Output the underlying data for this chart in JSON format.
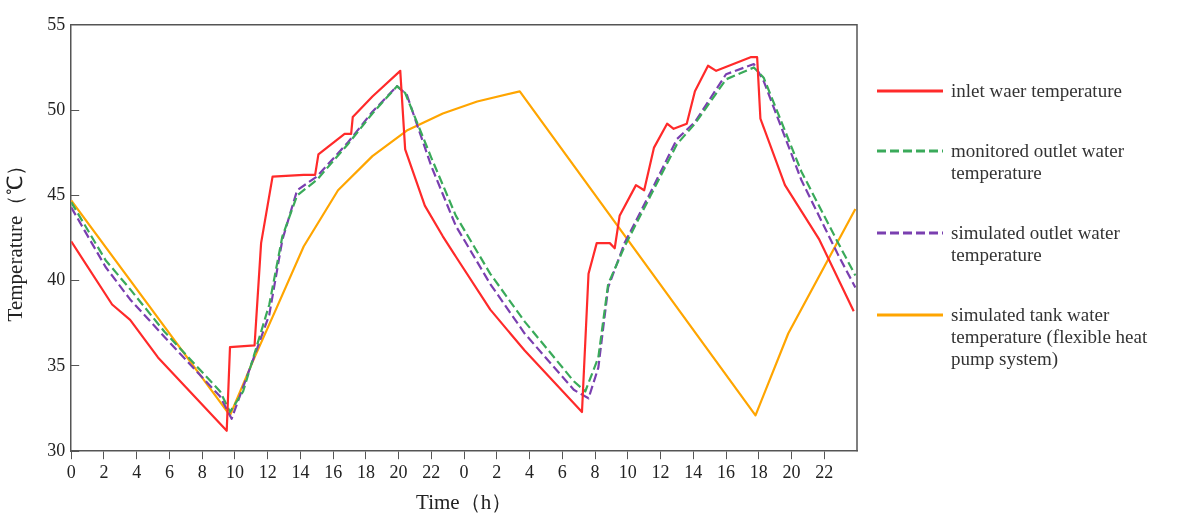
{
  "chart_data": {
    "type": "line",
    "xlabel": "Time（h）",
    "ylabel": "Temperature（℃）",
    "xlim": [
      "--01-01T00:00",
      "--01-03T00:00"
    ],
    "xticks": [
      {
        "value": "--01-01T00:00",
        "label": "0"
      },
      {
        "value": "--01-01T02:00",
        "label": "2"
      },
      {
        "value": "--01-01T04:00",
        "label": "4"
      },
      {
        "value": "--01-01T06:00",
        "label": "6"
      },
      {
        "value": "--01-01T08:00",
        "label": "8"
      },
      {
        "value": "--01-01T10:00",
        "label": "10"
      },
      {
        "value": "--01-01T12:00",
        "label": "12"
      },
      {
        "value": "--01-01T14:00",
        "label": "14"
      },
      {
        "value": "--01-01T16:00",
        "label": "16"
      },
      {
        "value": "--01-01T18:00",
        "label": "18"
      },
      {
        "value": "--01-01T20:00",
        "label": "20"
      },
      {
        "value": "--01-01T22:00",
        "label": "22"
      },
      {
        "value": "--01-02T00:00",
        "label": "0"
      },
      {
        "value": "--01-02T02:00",
        "label": "2"
      },
      {
        "value": "--01-02T04:00",
        "label": "4"
      },
      {
        "value": "--01-02T06:00",
        "label": "6"
      },
      {
        "value": "--01-02T08:00",
        "label": "8"
      },
      {
        "value": "--01-02T10:00",
        "label": "10"
      },
      {
        "value": "--01-02T12:00",
        "label": "12"
      },
      {
        "value": "--01-02T14:00",
        "label": "14"
      },
      {
        "value": "--01-02T16:00",
        "label": "16"
      },
      {
        "value": "--01-02T18:00",
        "label": "18"
      },
      {
        "value": "--01-02T20:00",
        "label": "20"
      },
      {
        "value": "--01-02T22:00",
        "label": "22"
      }
    ],
    "ylim": [
      30,
      55
    ],
    "yticks": [
      30,
      35,
      40,
      45,
      50,
      55
    ],
    "grid": false,
    "legend": "right",
    "marker": "none",
    "series": [
      {
        "name": "inlet waer temperature",
        "color": "#ff2a2a",
        "line_style": "solid",
        "x": [
          "--01-01T00:00",
          "--01-01T02:30",
          "--01-01T03:36",
          "--01-01T05:18",
          "--01-01T09:30",
          "--01-01T09:42",
          "--01-01T11:12",
          "--01-01T11:36",
          "--01-01T12:18",
          "--01-01T14:12",
          "--01-01T14:54",
          "--01-01T15:06",
          "--01-01T16:42",
          "--01-01T17:06",
          "--01-01T17:12",
          "--01-01T18:24",
          "--01-01T20:06",
          "--01-01T20:24",
          "--01-01T21:36",
          "--01-01T22:42",
          "--01-01T23:30",
          "--01-02T01:36",
          "--01-02T03:42",
          "--01-02T07:12",
          "--01-02T07:36",
          "--01-02T08:06",
          "--01-02T08:54",
          "--01-02T09:12",
          "--01-02T09:30",
          "--01-02T10:30",
          "--01-02T11:00",
          "--01-02T11:36",
          "--01-02T12:24",
          "--01-02T12:48",
          "--01-02T13:36",
          "--01-02T14:06",
          "--01-02T14:54",
          "--01-02T15:24",
          "--01-02T17:30",
          "--01-02T17:54",
          "--01-02T18:06",
          "--01-02T19:36",
          "--01-02T21:42",
          "--01-02T23:48"
        ],
        "values": [
          42.3,
          38.6,
          37.7,
          35.5,
          31.2,
          36.1,
          36.2,
          42.2,
          46.1,
          46.2,
          46.2,
          47.4,
          48.6,
          48.6,
          49.6,
          50.8,
          52.3,
          47.7,
          44.4,
          42.6,
          41.4,
          38.3,
          35.9,
          32.3,
          40.4,
          42.2,
          42.2,
          41.9,
          43.8,
          45.6,
          45.3,
          47.8,
          49.2,
          48.9,
          49.2,
          51.1,
          52.6,
          52.3,
          53.1,
          53.1,
          49.5,
          45.6,
          42.4,
          38.2
        ]
      },
      {
        "name": "monitored outlet water temperature",
        "color": "#3aaa5a",
        "line_style": "dashed",
        "x": [
          "--01-01T00:00",
          "--01-01T02:06",
          "--01-01T03:36",
          "--01-01T05:42",
          "--01-01T09:06",
          "--01-01T09:42",
          "--01-01T10:30",
          "--01-01T12:06",
          "--01-01T12:54",
          "--01-01T13:48",
          "--01-01T15:00",
          "--01-01T16:54",
          "--01-01T18:24",
          "--01-01T19:54",
          "--01-01T20:24",
          "--01-01T22:00",
          "--01-01T23:30",
          "--01-02T01:36",
          "--01-02T03:42",
          "--01-02T06:42",
          "--01-02T07:24",
          "--01-02T08:12",
          "--01-02T08:48",
          "--01-02T09:48",
          "--01-02T11:24",
          "--01-02T13:00",
          "--01-02T14:06",
          "--01-02T16:00",
          "--01-02T17:42",
          "--01-02T18:18",
          "--01-02T20:36",
          "--01-02T22:48",
          "--01-02T23:54"
        ],
        "values": [
          44.6,
          41.2,
          39.5,
          37.0,
          33.5,
          32.3,
          33.5,
          38.6,
          42.6,
          45.0,
          45.9,
          48.0,
          49.8,
          51.4,
          51.0,
          47.2,
          43.8,
          40.4,
          37.6,
          34.1,
          33.5,
          35.5,
          39.8,
          42.0,
          45.0,
          48.0,
          49.2,
          51.8,
          52.5,
          51.9,
          46.4,
          42.3,
          40.3
        ]
      },
      {
        "name": "simulated outlet water temperature",
        "color": "#7a3fb0",
        "line_style": "dashed",
        "x": [
          "--01-01T00:00",
          "--01-01T02:06",
          "--01-01T03:36",
          "--01-01T05:42",
          "--01-01T09:06",
          "--01-01T09:48",
          "--01-01T12:06",
          "--01-01T12:54",
          "--01-01T13:48",
          "--01-01T15:00",
          "--01-01T16:54",
          "--01-01T18:24",
          "--01-01T19:54",
          "--01-01T20:30",
          "--01-01T22:00",
          "--01-01T23:30",
          "--01-02T01:36",
          "--01-02T03:42",
          "--01-02T06:42",
          "--01-02T07:36",
          "--01-02T08:12",
          "--01-02T08:48",
          "--01-02T09:48",
          "--01-02T11:24",
          "--01-02T13:00",
          "--01-02T14:06",
          "--01-02T16:00",
          "--01-02T17:42",
          "--01-02T18:18",
          "--01-02T20:36",
          "--01-02T22:48",
          "--01-02T23:54"
        ],
        "values": [
          44.3,
          40.8,
          38.9,
          36.7,
          33.2,
          31.9,
          38.0,
          42.4,
          45.3,
          46.1,
          48.1,
          49.9,
          51.4,
          50.9,
          46.7,
          43.2,
          39.8,
          36.9,
          33.6,
          33.1,
          34.9,
          39.6,
          42.2,
          45.2,
          48.3,
          49.3,
          52.1,
          52.7,
          51.7,
          45.9,
          41.6,
          39.6
        ]
      },
      {
        "name": "simulated tank water temperature (flexible heat pump system)",
        "color": "#ffa500",
        "line_style": "solid",
        "x": [
          "--01-01T00:00",
          "--01-01T09:42",
          "--01-01T11:12",
          "--01-01T12:30",
          "--01-01T14:12",
          "--01-01T16:18",
          "--01-01T18:24",
          "--01-01T20:30",
          "--01-01T22:42",
          "--01-02T00:48",
          "--01-02T03:24",
          "--01-02T17:48",
          "--01-02T19:48",
          "--01-02T23:54"
        ],
        "values": [
          44.7,
          32.1,
          35.5,
          38.3,
          42.0,
          45.3,
          47.3,
          48.8,
          49.8,
          50.5,
          51.1,
          32.1,
          36.9,
          44.2
        ]
      }
    ]
  }
}
